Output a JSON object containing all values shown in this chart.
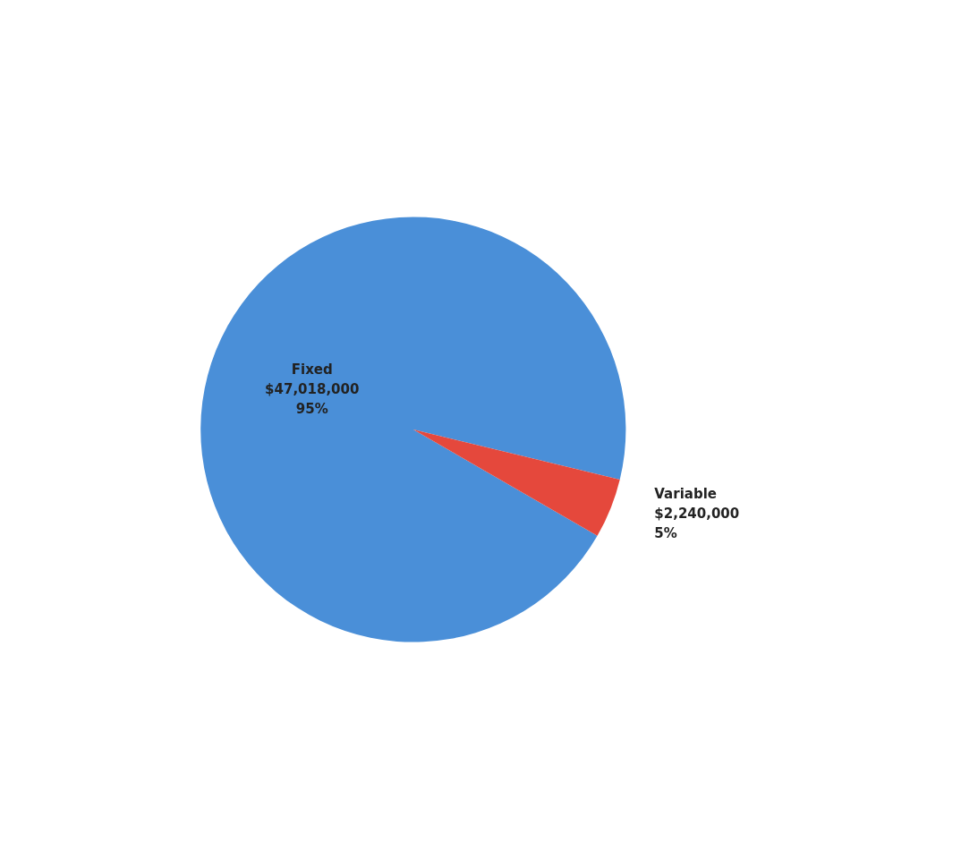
{
  "chart_data": {
    "type": "pie",
    "categories": [
      "Fixed",
      "Variable"
    ],
    "values": [
      47018000,
      2240000
    ],
    "value_labels": [
      "$47,018,000\n95%",
      "$2,240,000\n5%"
    ],
    "colors": [
      "#4a8fd8",
      "#e5483c"
    ]
  }
}
